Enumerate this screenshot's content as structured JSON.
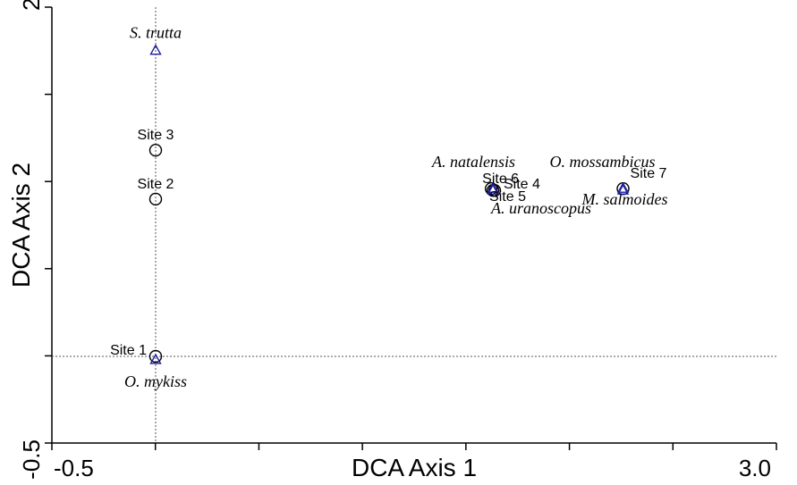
{
  "chart_data": {
    "type": "scatter",
    "title": "",
    "xlabel": "DCA Axis 1",
    "ylabel": "DCA Axis 2",
    "xlim": [
      -0.5,
      3.0
    ],
    "ylim": [
      -0.5,
      2.0
    ],
    "xticks": [
      -0.5,
      3.0
    ],
    "yticks": [
      2.0,
      -0.5
    ],
    "xtick_labels": [
      "-0.5",
      "3.0"
    ],
    "ytick_labels": [
      "2.0",
      "-0.5"
    ],
    "reference_lines": {
      "x": 0.0,
      "y": 0.0
    },
    "grid": false,
    "legend": "none",
    "series": [
      {
        "marker": "circle",
        "color": "#000000",
        "points": [
          {
            "label": "Site 1",
            "x": 0.0,
            "y": 0.0
          },
          {
            "label": "Site 2",
            "x": 0.0,
            "y": 0.9
          },
          {
            "label": "Site 3",
            "x": 0.0,
            "y": 1.18
          },
          {
            "label": "Site 6",
            "x": 1.96,
            "y": 0.96
          },
          {
            "label": "Site 4",
            "x": 1.98,
            "y": 0.95
          },
          {
            "label": "Site 5",
            "x": 1.97,
            "y": 0.95
          },
          {
            "label": "Site 7",
            "x": 2.73,
            "y": 0.96
          }
        ]
      },
      {
        "marker": "triangle",
        "color": "#1f1f9e",
        "points": [
          {
            "label": "S. trutta",
            "x": 0.0,
            "y": 1.75
          },
          {
            "label": "O. mykiss",
            "x": 0.0,
            "y": -0.02
          },
          {
            "label": "A. natalensis",
            "x": 1.97,
            "y": 0.96
          },
          {
            "label": "O. mossambicus",
            "x": 2.73,
            "y": 0.96
          },
          {
            "label": "A. uranoscopus",
            "x": 1.97,
            "y": 0.95
          },
          {
            "label": "M. salmoides",
            "x": 2.73,
            "y": 0.95
          }
        ]
      }
    ]
  }
}
